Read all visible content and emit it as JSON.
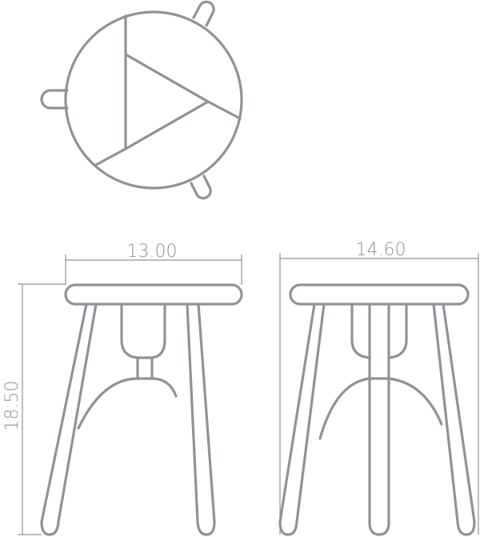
{
  "dimensions": {
    "front_width": "13.00",
    "side_width": "14.60",
    "height": "18.50"
  },
  "colors": {
    "line": "#8f9399",
    "background": "#ffffff"
  }
}
